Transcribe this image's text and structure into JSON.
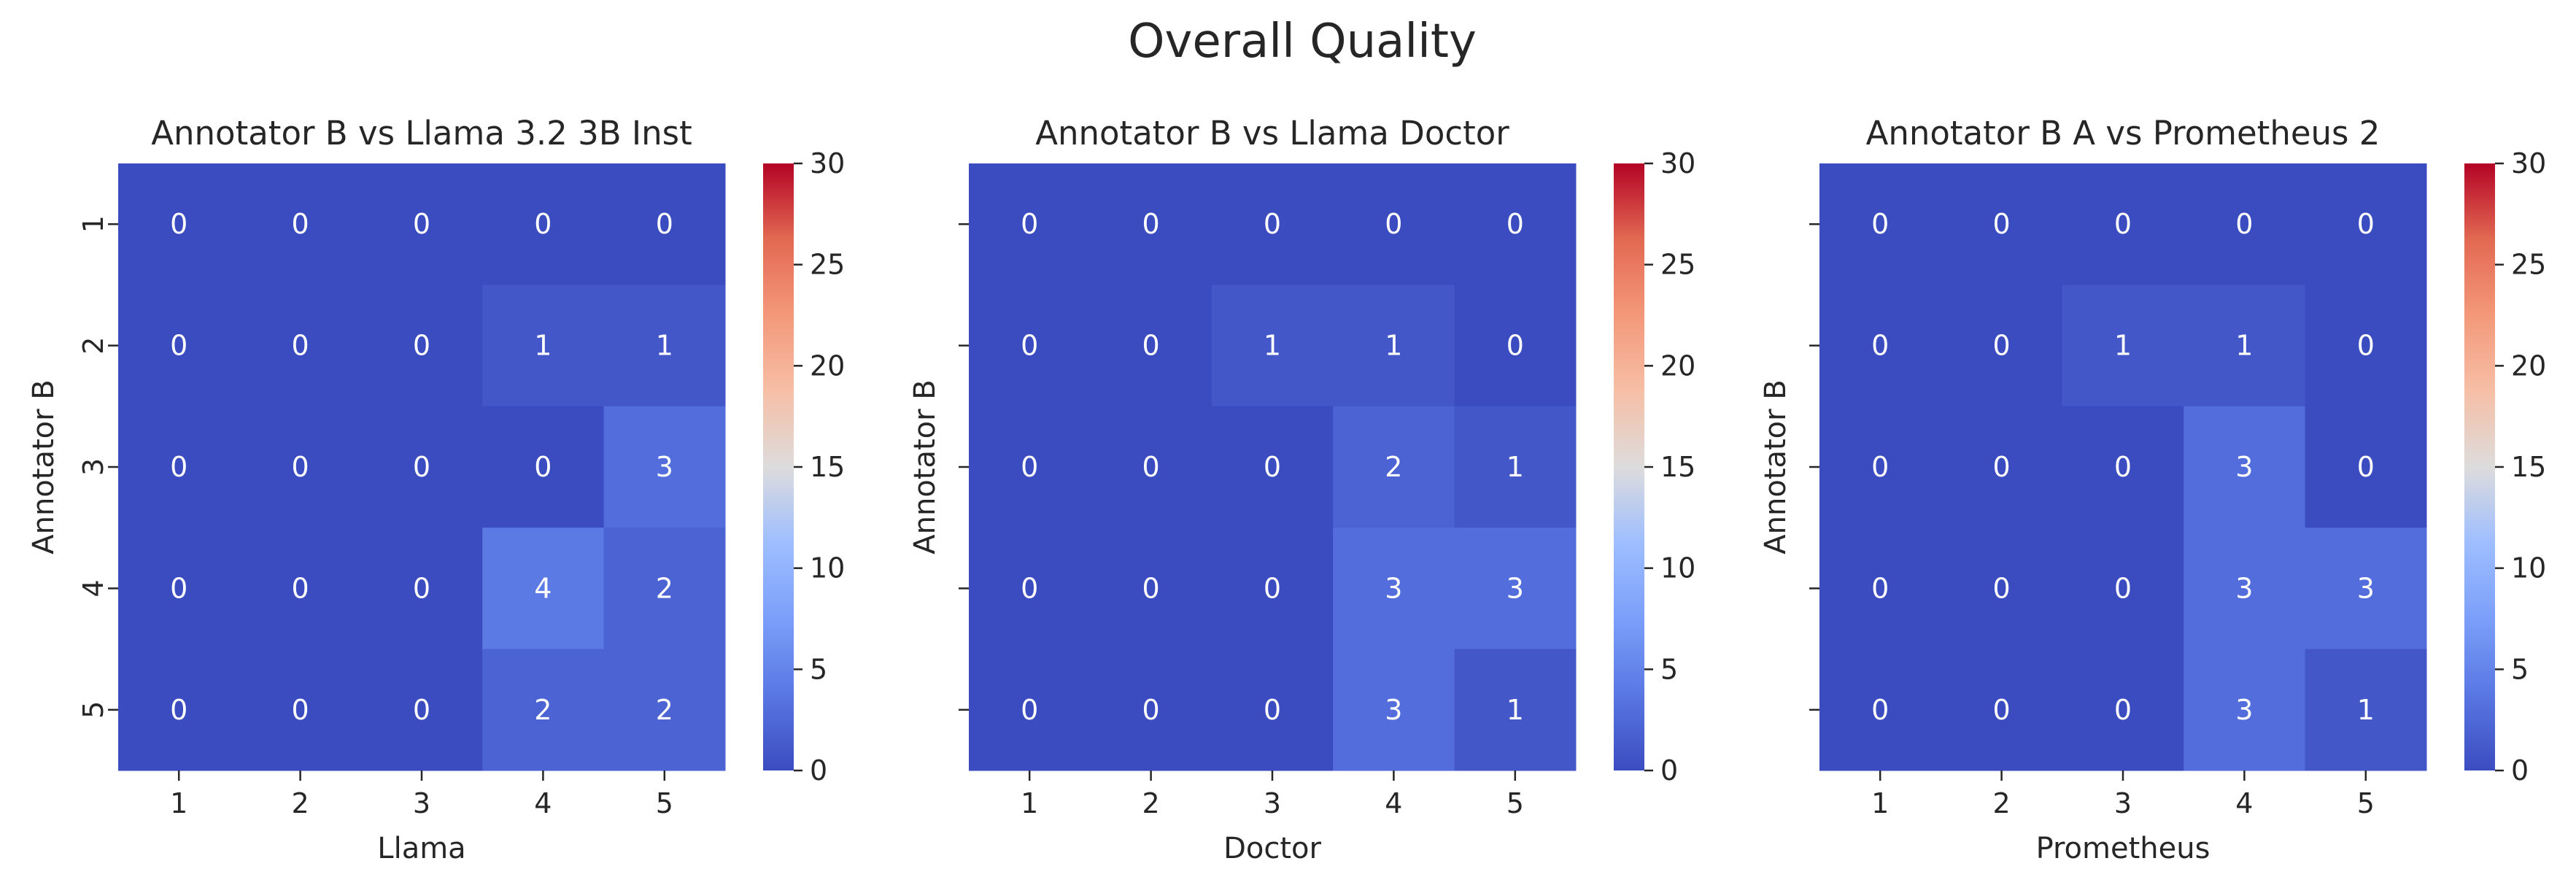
{
  "figure": {
    "title": "Overall Quality"
  },
  "chart_data": [
    {
      "type": "heatmap",
      "title": "Annotator B vs Llama 3.2 3B Inst",
      "xlabel": "Llama",
      "ylabel": "Annotator B",
      "x_categories": [
        "1",
        "2",
        "3",
        "4",
        "5"
      ],
      "y_categories": [
        "1",
        "2",
        "3",
        "4",
        "5"
      ],
      "values": [
        [
          0,
          0,
          0,
          0,
          0
        ],
        [
          0,
          0,
          0,
          1,
          1
        ],
        [
          0,
          0,
          0,
          0,
          3
        ],
        [
          0,
          0,
          0,
          4,
          2
        ],
        [
          0,
          0,
          0,
          2,
          2
        ]
      ],
      "colormap": "coolwarm",
      "vmin": 0,
      "vmax": 30,
      "colorbar_ticks": [
        "0",
        "5",
        "10",
        "15",
        "20",
        "25",
        "30"
      ],
      "show_ytick_labels": true
    },
    {
      "type": "heatmap",
      "title": "Annotator B vs Llama Doctor",
      "xlabel": "Doctor",
      "ylabel": "Annotator B",
      "x_categories": [
        "1",
        "2",
        "3",
        "4",
        "5"
      ],
      "y_categories": [
        "1",
        "2",
        "3",
        "4",
        "5"
      ],
      "values": [
        [
          0,
          0,
          0,
          0,
          0
        ],
        [
          0,
          0,
          1,
          1,
          0
        ],
        [
          0,
          0,
          0,
          2,
          1
        ],
        [
          0,
          0,
          0,
          3,
          3
        ],
        [
          0,
          0,
          0,
          3,
          1
        ]
      ],
      "colormap": "coolwarm",
      "vmin": 0,
      "vmax": 30,
      "colorbar_ticks": [
        "0",
        "5",
        "10",
        "15",
        "20",
        "25",
        "30"
      ],
      "show_ytick_labels": false
    },
    {
      "type": "heatmap",
      "title": "Annotator B A vs Prometheus 2",
      "xlabel": "Prometheus",
      "ylabel": "Annotator B",
      "x_categories": [
        "1",
        "2",
        "3",
        "4",
        "5"
      ],
      "y_categories": [
        "1",
        "2",
        "3",
        "4",
        "5"
      ],
      "values": [
        [
          0,
          0,
          0,
          0,
          0
        ],
        [
          0,
          0,
          1,
          1,
          0
        ],
        [
          0,
          0,
          0,
          3,
          0
        ],
        [
          0,
          0,
          0,
          3,
          3
        ],
        [
          0,
          0,
          0,
          3,
          1
        ]
      ],
      "colormap": "coolwarm",
      "vmin": 0,
      "vmax": 30,
      "colorbar_ticks": [
        "0",
        "5",
        "10",
        "15",
        "20",
        "25",
        "30"
      ],
      "show_ytick_labels": false
    }
  ]
}
